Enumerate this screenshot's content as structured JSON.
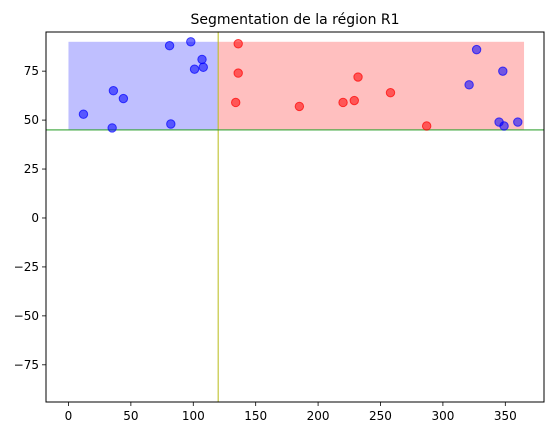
{
  "chart_data": {
    "type": "scatter",
    "title": "Segmentation de la région R1",
    "xlabel": "",
    "ylabel": "",
    "xlim": [
      -18,
      381
    ],
    "ylim": [
      -94,
      95
    ],
    "xticks": [
      0,
      50,
      100,
      150,
      200,
      250,
      300,
      350
    ],
    "yticks": [
      -75,
      -50,
      -25,
      0,
      25,
      50,
      75
    ],
    "regions": [
      {
        "name": "",
        "x": [
          0,
          120
        ],
        "y": [
          45,
          90
        ],
        "color": "#0000ff",
        "alpha": 0.25
      },
      {
        "name": "",
        "x": [
          120,
          365
        ],
        "y": [
          45,
          90
        ],
        "color": "#ff0000",
        "alpha": 0.25
      }
    ],
    "lines": [
      {
        "orientation": "vertical",
        "value": 120,
        "color": "#bcbd22"
      },
      {
        "orientation": "horizontal",
        "value": 45,
        "color": "#2ca02c"
      }
    ],
    "series": [
      {
        "color": "#0000ff",
        "points": [
          [
            12,
            53
          ],
          [
            35,
            46
          ],
          [
            36,
            65
          ],
          [
            44,
            61
          ],
          [
            81,
            88
          ],
          [
            82,
            48
          ],
          [
            98,
            90
          ],
          [
            101,
            76
          ],
          [
            107,
            81
          ],
          [
            108,
            77
          ],
          [
            321,
            68
          ],
          [
            327,
            86
          ],
          [
            345,
            49
          ],
          [
            348,
            75
          ],
          [
            349,
            47
          ],
          [
            360,
            49
          ]
        ]
      },
      {
        "color": "#ff0000",
        "points": [
          [
            134,
            59
          ],
          [
            136,
            89
          ],
          [
            136,
            74
          ],
          [
            185,
            57
          ],
          [
            220,
            59
          ],
          [
            229,
            60
          ],
          [
            232,
            72
          ],
          [
            258,
            64
          ],
          [
            287,
            47
          ]
        ]
      }
    ],
    "grid": false,
    "legend": "none"
  }
}
